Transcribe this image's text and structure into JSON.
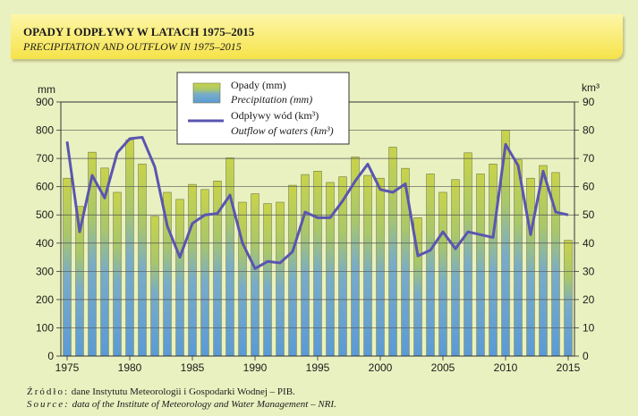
{
  "header": {
    "title": "OPADY I ODPŁYWY W LATACH 1975–2015",
    "subtitle": "PRECIPITATION AND OUTFLOW IN 1975–2015"
  },
  "source": {
    "line1_lead": "Źródło:",
    "line1_text": " dane Instytutu Meteorologii i Gospodarki Wodnej – PIB.",
    "line2_lead": "Source:",
    "line2_text": " data of the Institute of Meteorology and Water Management – NRI."
  },
  "colors": {
    "background": "#eaf1c0",
    "bar_top": "#c9d34a",
    "bar_bottom": "#5a9ad6",
    "line": "#5a55b0",
    "grid": "#555555"
  },
  "chart_data": {
    "type": "bar+line",
    "left_axis_label": "mm",
    "right_axis_label": "km³",
    "left_ylim": [
      0,
      900
    ],
    "right_ylim": [
      0,
      90
    ],
    "left_ticks": [
      0,
      100,
      200,
      300,
      400,
      500,
      600,
      700,
      800,
      900
    ],
    "right_ticks": [
      0,
      10,
      20,
      30,
      40,
      50,
      60,
      70,
      80,
      90
    ],
    "x_ticks": [
      1975,
      1980,
      1985,
      1990,
      1995,
      2000,
      2005,
      2010,
      2015
    ],
    "grid": true,
    "legend": {
      "placement": "top-center",
      "bar_label_pl": "Opady (mm)",
      "bar_label_en": "Precipitation (mm)",
      "line_label_pl": "Odpływy wód (km³)",
      "line_label_en": "Outflow of waters (km³)"
    },
    "years": [
      1975,
      1976,
      1977,
      1978,
      1979,
      1980,
      1981,
      1982,
      1983,
      1984,
      1985,
      1986,
      1987,
      1988,
      1989,
      1990,
      1991,
      1992,
      1993,
      1994,
      1995,
      1996,
      1997,
      1998,
      1999,
      2000,
      2001,
      2002,
      2003,
      2004,
      2005,
      2006,
      2007,
      2008,
      2009,
      2010,
      2011,
      2012,
      2013,
      2014,
      2015
    ],
    "precipitation_mm": [
      630,
      530,
      722,
      666,
      580,
      765,
      680,
      495,
      580,
      555,
      608,
      590,
      620,
      702,
      545,
      575,
      540,
      545,
      605,
      643,
      655,
      615,
      635,
      705,
      640,
      630,
      740,
      665,
      490,
      645,
      580,
      625,
      720,
      645,
      680,
      800,
      695,
      630,
      675,
      650,
      410
    ],
    "outflow_km3": [
      76,
      44,
      64,
      56,
      72,
      77,
      77.5,
      67,
      46,
      35,
      47,
      50,
      50.5,
      57,
      40,
      31,
      33.5,
      33,
      37,
      51,
      49,
      49,
      55,
      62,
      68,
      59,
      58,
      61,
      35.5,
      37.5,
      44,
      38,
      44,
      43,
      42,
      75,
      67.5,
      43,
      65.5,
      51,
      50
    ]
  }
}
